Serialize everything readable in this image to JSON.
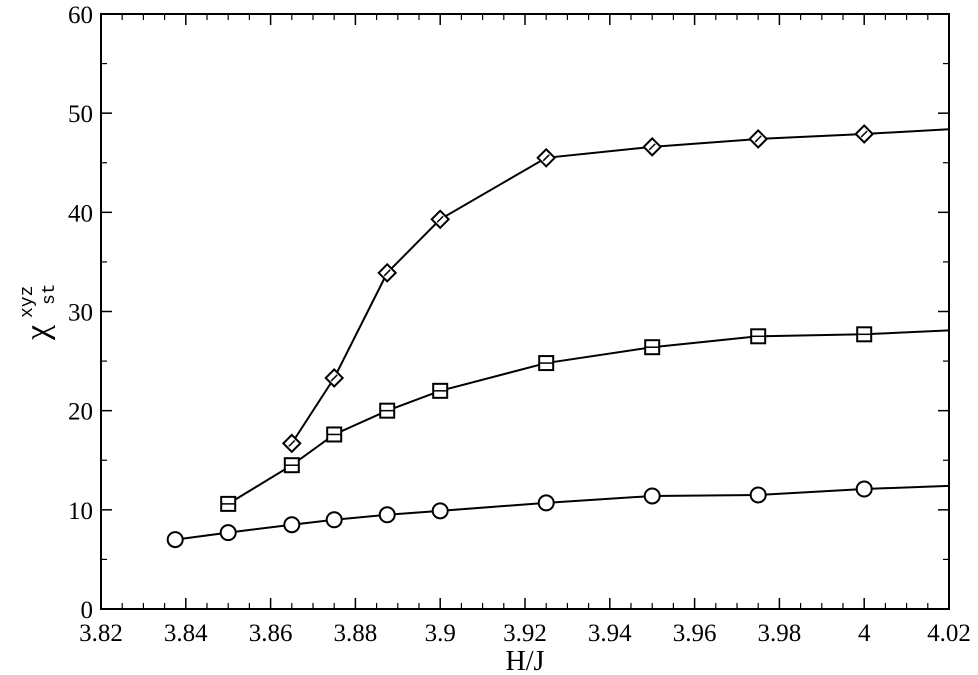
{
  "chart_data": {
    "type": "line",
    "xlabel": "H/J",
    "ylabel": {
      "main": "χ",
      "superscript": "xyz",
      "subscript": "st"
    },
    "xlim": [
      3.82,
      4.02
    ],
    "ylim": [
      0,
      60
    ],
    "x_ticks": [
      "3.82",
      "3.84",
      "3.86",
      "3.88",
      "3.9",
      "3.92",
      "3.94",
      "3.96",
      "3.98",
      "4",
      "4.02"
    ],
    "y_ticks": [
      "0",
      "10",
      "20",
      "30",
      "40",
      "50",
      "60"
    ],
    "grid": false,
    "legend": "none",
    "series": [
      {
        "marker": "diamond",
        "points": [
          [
            3.865,
            16.7
          ],
          [
            3.875,
            23.3
          ],
          [
            3.8875,
            33.9
          ],
          [
            3.9,
            39.3
          ],
          [
            3.925,
            45.5
          ],
          [
            3.95,
            46.6
          ],
          [
            3.975,
            47.4
          ],
          [
            4.0,
            47.9
          ],
          [
            4.025,
            48.5
          ]
        ]
      },
      {
        "marker": "square",
        "points": [
          [
            3.85,
            10.6
          ],
          [
            3.865,
            14.5
          ],
          [
            3.875,
            17.6
          ],
          [
            3.8875,
            20.0
          ],
          [
            3.9,
            22.0
          ],
          [
            3.925,
            24.8
          ],
          [
            3.95,
            26.4
          ],
          [
            3.975,
            27.5
          ],
          [
            4.0,
            27.7
          ],
          [
            4.025,
            28.2
          ]
        ]
      },
      {
        "marker": "circle",
        "points": [
          [
            3.8375,
            7.0
          ],
          [
            3.85,
            7.7
          ],
          [
            3.865,
            8.5
          ],
          [
            3.875,
            9.0
          ],
          [
            3.8875,
            9.5
          ],
          [
            3.9,
            9.9
          ],
          [
            3.925,
            10.7
          ],
          [
            3.95,
            11.4
          ],
          [
            3.975,
            11.5
          ],
          [
            4.0,
            12.1
          ],
          [
            4.025,
            12.5
          ]
        ]
      }
    ]
  }
}
